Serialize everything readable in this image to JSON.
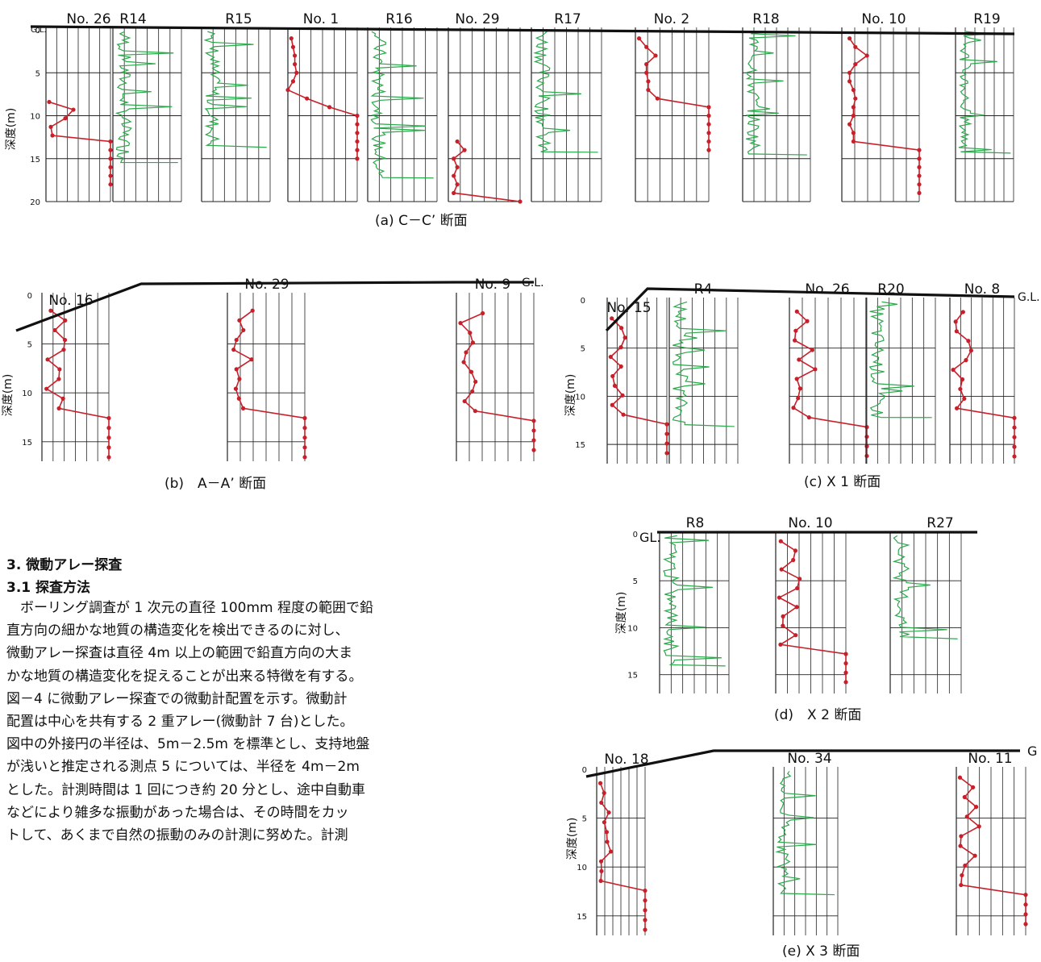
{
  "figure": {
    "depth_label": "深度(m)",
    "gl": "G.L.",
    "panels": [
      {
        "caption": "(a) C－C’ 断面",
        "ticks": [
          "0",
          "5",
          "10",
          "15",
          "20"
        ],
        "logs": [
          {
            "label": "No. 26",
            "type": "boring",
            "values": [
              [
                8.4,
                2
              ],
              [
                9.3,
                17
              ],
              [
                10.3,
                12
              ],
              [
                11.3,
                3
              ],
              [
                12.3,
                4
              ],
              [
                13.0,
                40
              ],
              [
                14.0,
                40
              ],
              [
                15.0,
                40
              ],
              [
                16.0,
                40
              ],
              [
                17.0,
                40
              ],
              [
                18.0,
                40
              ]
            ]
          },
          {
            "label": "R14",
            "type": "sounding"
          },
          {
            "label": "R15",
            "type": "sounding"
          },
          {
            "label": "No. 1",
            "type": "boring",
            "values": [
              [
                1.0,
                2
              ],
              [
                2.0,
                3
              ],
              [
                3.0,
                4
              ],
              [
                4.0,
                4
              ],
              [
                5.0,
                5
              ],
              [
                6.0,
                3
              ],
              [
                7.0,
                0
              ],
              [
                8.0,
                11
              ],
              [
                9.0,
                24
              ],
              [
                10.0,
                40
              ],
              [
                11.0,
                40
              ],
              [
                12.0,
                40
              ],
              [
                13.0,
                40
              ],
              [
                14.0,
                40
              ],
              [
                15.0,
                40
              ]
            ]
          },
          {
            "label": "R16",
            "type": "sounding"
          },
          {
            "label": "No. 29",
            "type": "boring",
            "values": [
              [
                13.0,
                5
              ],
              [
                14.0,
                9
              ],
              [
                15.0,
                3
              ],
              [
                16.0,
                5
              ],
              [
                17.0,
                3
              ],
              [
                18.0,
                5
              ],
              [
                19.0,
                3
              ],
              [
                20.0,
                40
              ]
            ]
          },
          {
            "label": "R17",
            "type": "sounding"
          },
          {
            "label": "No. 2",
            "type": "boring",
            "values": [
              [
                1.0,
                2
              ],
              [
                2.0,
                6
              ],
              [
                3.0,
                11
              ],
              [
                4.0,
                6
              ],
              [
                5.0,
                6
              ],
              [
                6.0,
                7
              ],
              [
                7.0,
                7
              ],
              [
                8.0,
                12
              ],
              [
                9.0,
                40
              ],
              [
                10.0,
                40
              ],
              [
                11.0,
                40
              ],
              [
                12.0,
                40
              ],
              [
                13.0,
                40
              ],
              [
                14.0,
                40
              ]
            ]
          },
          {
            "label": "R18",
            "type": "sounding"
          },
          {
            "label": "No. 10",
            "type": "boring",
            "values": [
              [
                1.0,
                4
              ],
              [
                2.0,
                7
              ],
              [
                3.0,
                13
              ],
              [
                4.0,
                7
              ],
              [
                5.0,
                4
              ],
              [
                6.0,
                4
              ],
              [
                7.0,
                6
              ],
              [
                8.0,
                7
              ],
              [
                9.0,
                6
              ],
              [
                10.0,
                6
              ],
              [
                11.0,
                4
              ],
              [
                12.0,
                6
              ],
              [
                13.0,
                6
              ],
              [
                14.0,
                40
              ],
              [
                15.0,
                40
              ],
              [
                16.0,
                40
              ],
              [
                17.0,
                40
              ],
              [
                18.0,
                40
              ],
              [
                19.0,
                40
              ]
            ]
          },
          {
            "label": "R19",
            "type": "sounding"
          }
        ]
      },
      {
        "caption": "(b)　A－A’ 断面",
        "ticks": [
          "0",
          "5",
          "10",
          "15"
        ],
        "logs": [
          {
            "label": "No. 16",
            "type": "boring"
          },
          {
            "label": "No. 29",
            "type": "boring"
          },
          {
            "label": "No. 9",
            "type": "boring"
          }
        ]
      },
      {
        "caption": "(c) X 1 断面",
        "ticks": [
          "0",
          "5",
          "10",
          "15"
        ],
        "logs": [
          {
            "label": "No. 15",
            "type": "boring"
          },
          {
            "label": "R4",
            "type": "sounding"
          },
          {
            "label": "No. 26",
            "type": "boring"
          },
          {
            "label": "R20",
            "type": "sounding"
          },
          {
            "label": "No. 8",
            "type": "boring"
          }
        ]
      },
      {
        "caption": "(d)　X 2 断面",
        "ticks": [
          "0",
          "5",
          "10",
          "15"
        ],
        "gl": "GL.",
        "logs": [
          {
            "label": "R8",
            "type": "sounding"
          },
          {
            "label": "No. 10",
            "type": "boring"
          },
          {
            "label": "R27",
            "type": "sounding"
          }
        ]
      },
      {
        "caption": "(e) X 3 断面",
        "ticks": [
          "0",
          "5",
          "10",
          "15"
        ],
        "gl": "G",
        "logs": [
          {
            "label": "No. 18",
            "type": "boring"
          },
          {
            "label": "No. 34",
            "type": "sounding"
          },
          {
            "label": "No. 11",
            "type": "boring"
          }
        ]
      }
    ]
  },
  "section": {
    "heading": "3.  微動アレー探査",
    "subheading": "3.1  探査方法",
    "lines": [
      "　ボーリング調査が 1 次元の直径 100mm 程度の範囲で鉛",
      "直方向の細かな地質の構造変化を検出できるのに対し、",
      "微動アレー探査は直径  4m 以上の範囲で鉛直方向の大ま",
      "かな地質の構造変化を捉えることが出来る特徴を有する。",
      "図－4 に微動アレー探査での微動計配置を示す。微動計",
      "配置は中心を共有する 2 重アレー(微動計 7 台)とした。",
      "図中の外接円の半径は、5m－2.5m を標準とし、支持地盤",
      "が浅いと推定される測点 5 については、半径を  4m－2m",
      "とした。計測時間は 1 回につき約 20 分とし、途中自動車",
      "などにより雑多な振動があった場合は、その時間をカッ",
      "トして、あくまで自然の振動のみの計測に努めた。計測"
    ]
  }
}
